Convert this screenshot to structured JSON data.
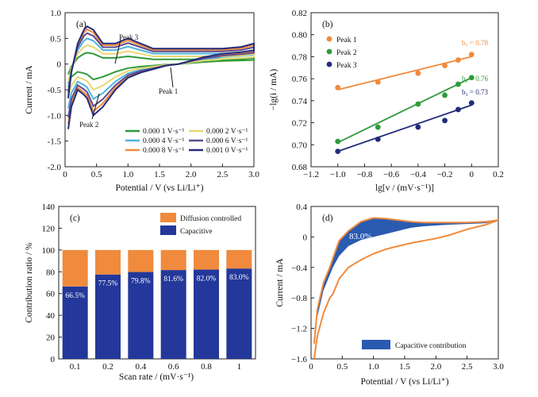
{
  "chart_data": [
    {
      "panel": "(a)",
      "type": "line",
      "xlabel": "Potential / V (vs Li/Li⁺)",
      "ylabel": "Current / mA",
      "xlim": [
        0.0,
        3.0
      ],
      "ylim": [
        -2.0,
        1.0
      ],
      "xticks": [
        "0",
        "0.5",
        "1.0",
        "1.5",
        "2.0",
        "2.5",
        "3.0"
      ],
      "yticks": [
        "1.0",
        "0.5",
        "0",
        "-0.5",
        "-1.0",
        "-1.5",
        "-2.0"
      ],
      "legend": [
        "0.000 1 V·s⁻¹",
        "0.000 2 V·s⁻¹",
        "0.000 4 V·s⁻¹",
        "0.000 6 V·s⁻¹",
        "0.000 8 V·s⁻¹",
        "0.001 0 V·s⁻¹"
      ],
      "colors": [
        "#2e9a3a",
        "#e8d870",
        "#4fb3de",
        "#5e4b8b",
        "#f08a3c",
        "#232c7a"
      ],
      "annotations": [
        "Peak 1",
        "Peak 2",
        "Peak 3"
      ],
      "series": [
        {
          "name": "0.000 1 V·s⁻¹",
          "scale": 0.3,
          "x": [
            0.05,
            0.1,
            0.2,
            0.3,
            0.35,
            0.45,
            0.6,
            0.8,
            1.0,
            1.2,
            1.4,
            1.6,
            1.8,
            2.0,
            2.2,
            2.5,
            2.8,
            3.0
          ],
          "y_reduction": [
            -0.38,
            -0.25,
            -0.15,
            -0.18,
            -0.2,
            -0.3,
            -0.25,
            -0.15,
            -0.08,
            -0.05,
            -0.03,
            -0.01,
            0.0,
            0.02,
            0.04,
            0.06,
            0.07,
            0.08
          ],
          "y_oxidation": [
            -0.2,
            -0.05,
            0.12,
            0.2,
            0.22,
            0.2,
            0.12,
            0.12,
            0.15,
            0.12,
            0.09,
            0.09,
            0.09,
            0.09,
            0.09,
            0.09,
            0.1,
            0.12
          ]
        },
        {
          "name": "0.000 2 V·s⁻¹",
          "scale": 0.5
        },
        {
          "name": "0.000 4 V·s⁻¹",
          "scale": 0.68
        },
        {
          "name": "0.000 6 V·s⁻¹",
          "scale": 0.82
        },
        {
          "name": "0.000 8 V·s⁻¹",
          "scale": 0.92
        },
        {
          "name": "0.001 0 V·s⁻¹",
          "scale": 1.0
        }
      ]
    },
    {
      "panel": "(b)",
      "type": "scatter",
      "xlabel": "lg[v / (mV·s⁻¹)]",
      "ylabel": "−lg(i / mA)",
      "xlim": [
        -1.2,
        0.2
      ],
      "ylim": [
        0.68,
        0.82
      ],
      "xticks": [
        "−1.2",
        "−1.0",
        "−0.8",
        "−0.6",
        "−0.4",
        "−0.2",
        "0",
        "0.2"
      ],
      "yticks": [
        "0.82",
        "0.80",
        "0.78",
        "0.76",
        "0.74",
        "0.72",
        "0.70",
        "0.68"
      ],
      "series": [
        {
          "name": "Peak 1",
          "color": "#f08a3c",
          "label": "b₁ = 0.78",
          "x": [
            -1.0,
            -0.7,
            -0.4,
            -0.2,
            -0.1,
            0.0
          ],
          "y": [
            0.752,
            0.757,
            0.765,
            0.772,
            0.777,
            0.782
          ],
          "fit": [
            [
              -1.0,
              0.75
            ],
            [
              0.0,
              0.78
            ]
          ]
        },
        {
          "name": "Peak 2",
          "color": "#2e9a3a",
          "label": "b₂ = 0.76",
          "x": [
            -1.0,
            -0.7,
            -0.4,
            -0.2,
            -0.1,
            0.0
          ],
          "y": [
            0.703,
            0.716,
            0.737,
            0.745,
            0.755,
            0.761
          ],
          "fit": [
            [
              -1.0,
              0.702
            ],
            [
              0.0,
              0.761
            ]
          ]
        },
        {
          "name": "Peak 3",
          "color": "#232c7a",
          "label": "b₃ = 0.73",
          "x": [
            -1.0,
            -0.7,
            -0.4,
            -0.2,
            -0.1,
            0.0
          ],
          "y": [
            0.694,
            0.705,
            0.716,
            0.722,
            0.732,
            0.738
          ],
          "fit": [
            [
              -1.0,
              0.694
            ],
            [
              0.0,
              0.736
            ]
          ]
        }
      ]
    },
    {
      "panel": "(c)",
      "type": "bar",
      "xlabel": "Scan rate / (mV·s⁻¹)",
      "ylabel": "Contribution ratio / %",
      "ylim": [
        0,
        140
      ],
      "yticks": [
        "0",
        "20",
        "40",
        "60",
        "80",
        "100",
        "120",
        "140"
      ],
      "categories": [
        "0.1",
        "0.2",
        "0.4",
        "0.6",
        "0.8",
        "1"
      ],
      "series": [
        {
          "name": "Capacitive",
          "color": "#23389a",
          "values": [
            66.5,
            77.5,
            79.8,
            81.6,
            82.0,
            83.0
          ]
        },
        {
          "name": "Diffusion controlled",
          "color": "#f08a3c",
          "values": [
            33.5,
            22.5,
            20.2,
            18.4,
            18.0,
            17.0
          ]
        }
      ],
      "labels": [
        "66.5%",
        "77.5%",
        "79.8%",
        "81.6%",
        "82.0%",
        "83.0%"
      ]
    },
    {
      "panel": "(d)",
      "type": "area",
      "xlabel": "Potential / V (vs Li/Li⁺)",
      "ylabel": "Current / mA",
      "xlim": [
        0.0,
        3.0
      ],
      "ylim": [
        -1.6,
        0.4
      ],
      "xticks": [
        "0",
        "0.5",
        "1.0",
        "1.5",
        "2.0",
        "2.5",
        "3.0"
      ],
      "yticks": [
        "0.4",
        "0",
        "−0.4",
        "−0.8",
        "−1.2",
        "−1.6"
      ],
      "annotation": "83.0%",
      "legend": "Capacitive contribution",
      "colors": {
        "area": "#2a5bb0",
        "cv": "#f08a3c"
      },
      "cv_x": [
        0.05,
        0.1,
        0.2,
        0.3,
        0.35,
        0.45,
        0.6,
        0.8,
        1.0,
        1.2,
        1.4,
        1.6,
        1.8,
        2.0,
        2.2,
        2.5,
        2.8,
        3.0
      ],
      "cv_reduction": [
        -1.6,
        -1.3,
        -1.0,
        -0.8,
        -0.75,
        -0.55,
        -0.4,
        -0.3,
        -0.22,
        -0.16,
        -0.12,
        -0.08,
        -0.05,
        -0.02,
        0.02,
        0.1,
        0.16,
        0.22
      ],
      "cv_oxidation": [
        -1.4,
        -0.95,
        -0.6,
        -0.4,
        -0.28,
        -0.05,
        0.08,
        0.2,
        0.25,
        0.24,
        0.22,
        0.2,
        0.19,
        0.19,
        0.19,
        0.19,
        0.2,
        0.22
      ],
      "cap_upper": [
        -1.25,
        -0.95,
        -0.6,
        -0.4,
        -0.28,
        -0.05,
        0.08,
        0.2,
        0.25,
        0.24,
        0.22,
        0.2,
        0.19,
        0.19,
        0.19,
        0.19,
        0.2,
        0.22
      ],
      "cap_lower": [
        -1.25,
        -1.05,
        -0.7,
        -0.5,
        -0.4,
        -0.25,
        -0.12,
        -0.04,
        0.0,
        0.04,
        0.08,
        0.12,
        0.14,
        0.15,
        0.16,
        0.17,
        0.18,
        0.22
      ]
    }
  ]
}
